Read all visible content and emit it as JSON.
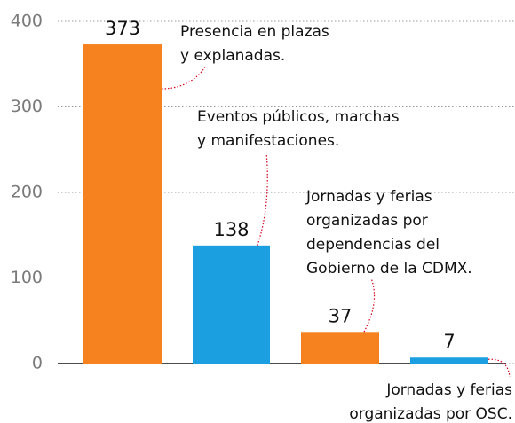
{
  "chart_data": {
    "type": "bar",
    "categories": [
      [
        "Presencia en plazas",
        "y explanadas."
      ],
      [
        "Eventos públicos, marchas",
        "y manifestaciones."
      ],
      [
        "Jornadas y ferias",
        "organizadas por",
        "dependencias del",
        "Gobierno de la CDMX."
      ],
      [
        "Jornadas y ferias",
        "organizadas por OSC."
      ]
    ],
    "values": [
      373,
      138,
      37,
      7
    ],
    "colors": [
      "#f5821f",
      "#1b9fe0",
      "#f5821f",
      "#1b9fe0"
    ],
    "ylim": [
      0,
      400
    ],
    "yticks": [
      0,
      100,
      200,
      300,
      400
    ],
    "grid": true,
    "leader_color": "#d0021b"
  }
}
